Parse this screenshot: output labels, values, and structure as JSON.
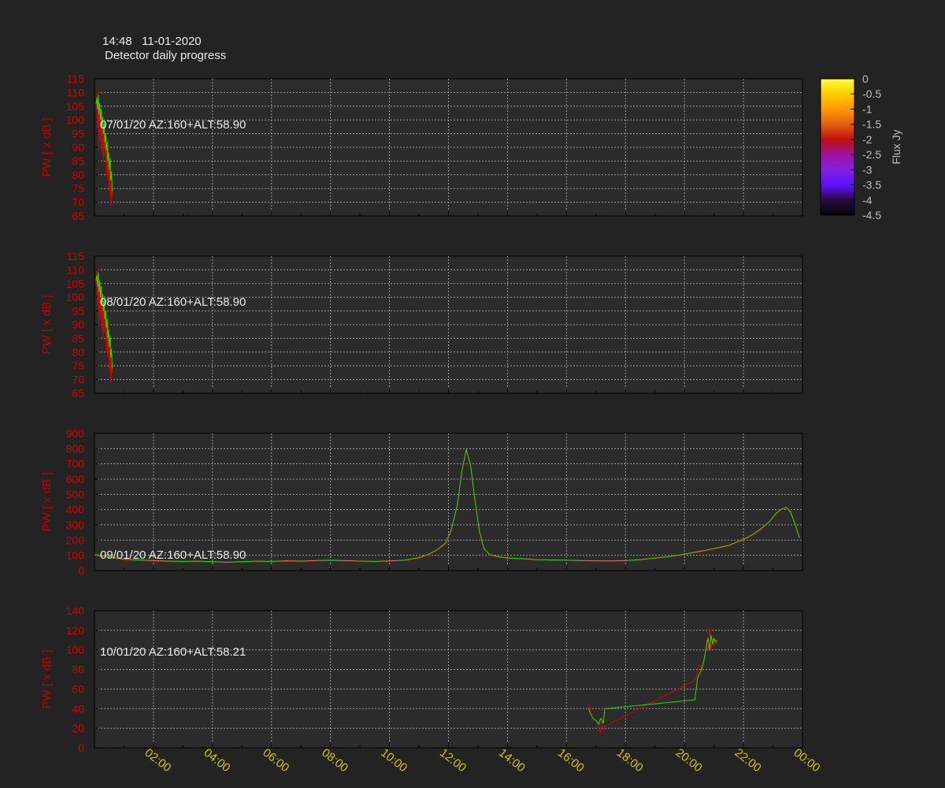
{
  "header": {
    "time_date": "14:48   11-01-2020",
    "title": "Detector daily progress"
  },
  "colors": {
    "background": "#232323",
    "plot_background": "#2b2b2b",
    "series_red": "#e00000",
    "series_green": "#22e000",
    "tick_label_y": "#d40000",
    "tick_label_x": "#d4c400",
    "grid": "#9a9a9a"
  },
  "colorbar": {
    "label": "Flux Jy",
    "ticks": [
      "0",
      "-0.5",
      "-1",
      "-1.5",
      "-2",
      "-2.5",
      "-3",
      "-3.5",
      "-4",
      "-4.5"
    ],
    "range": [
      -4.5,
      0
    ],
    "colormap": [
      "#ffff40",
      "#ffcc00",
      "#ff9900",
      "#e06010",
      "#c01010",
      "#a010a0",
      "#8020e0",
      "#6010ff",
      "#2a0a40",
      "#050505"
    ]
  },
  "chart_data": [
    {
      "type": "line",
      "label": "07/01/20 AZ:160+ALT:58.90",
      "ylabel": "PW [ x dB ]",
      "ylim": [
        65,
        115
      ],
      "yticks": [
        65,
        70,
        75,
        80,
        85,
        90,
        95,
        100,
        105,
        110,
        115
      ],
      "xlim": [
        0,
        24
      ],
      "grid": true,
      "series": [
        {
          "color": "red",
          "x": [
            0.05,
            0.08,
            0.1,
            0.12,
            0.15,
            0.17,
            0.2,
            0.22,
            0.25,
            0.27,
            0.3,
            0.32,
            0.35,
            0.37,
            0.4,
            0.42,
            0.45,
            0.47,
            0.5,
            0.52,
            0.55,
            0.58,
            0.6
          ],
          "y": [
            104,
            110,
            97,
            108,
            89,
            106,
            92,
            103,
            88,
            100,
            85,
            96,
            87,
            94,
            80,
            90,
            78,
            93,
            74,
            84,
            69,
            76,
            72
          ]
        },
        {
          "color": "green",
          "x": [
            0.05,
            0.08,
            0.1,
            0.13,
            0.15,
            0.18,
            0.2,
            0.23,
            0.25,
            0.28,
            0.3,
            0.33,
            0.35,
            0.38,
            0.4,
            0.43,
            0.45,
            0.48,
            0.5,
            0.53,
            0.55,
            0.58,
            0.6
          ],
          "y": [
            106,
            108,
            104,
            109,
            102,
            106,
            100,
            104,
            97,
            101,
            95,
            99,
            92,
            95,
            89,
            92,
            85,
            88,
            82,
            86,
            78,
            81,
            74
          ]
        }
      ]
    },
    {
      "type": "line",
      "label": "08/01/20 AZ:160+ALT:58.90",
      "ylabel": "PW [ x dB ]",
      "ylim": [
        65,
        115
      ],
      "yticks": [
        65,
        70,
        75,
        80,
        85,
        90,
        95,
        100,
        105,
        110,
        115
      ],
      "xlim": [
        0,
        24
      ],
      "grid": true,
      "series": [
        {
          "color": "red",
          "x": [
            0.05,
            0.08,
            0.1,
            0.12,
            0.15,
            0.17,
            0.2,
            0.22,
            0.25,
            0.27,
            0.3,
            0.32,
            0.35,
            0.37,
            0.4,
            0.42,
            0.45,
            0.47,
            0.5,
            0.52,
            0.55,
            0.58,
            0.6
          ],
          "y": [
            104,
            110,
            97,
            108,
            89,
            106,
            92,
            103,
            88,
            100,
            85,
            96,
            87,
            94,
            80,
            90,
            78,
            93,
            74,
            84,
            69,
            76,
            72
          ]
        },
        {
          "color": "green",
          "x": [
            0.05,
            0.08,
            0.1,
            0.13,
            0.15,
            0.18,
            0.2,
            0.23,
            0.25,
            0.28,
            0.3,
            0.33,
            0.35,
            0.38,
            0.4,
            0.43,
            0.45,
            0.48,
            0.5,
            0.53,
            0.55,
            0.58,
            0.6
          ],
          "y": [
            106,
            108,
            104,
            109,
            102,
            106,
            100,
            104,
            97,
            101,
            95,
            99,
            92,
            95,
            89,
            92,
            85,
            88,
            82,
            86,
            78,
            81,
            74
          ]
        }
      ]
    },
    {
      "type": "line",
      "label": "09/01/20 AZ:160+ALT:58.90",
      "ylabel": "PW [ x dB ]",
      "ylim": [
        0,
        900
      ],
      "yticks": [
        0,
        100,
        200,
        300,
        400,
        500,
        600,
        700,
        800,
        900
      ],
      "xlim": [
        0,
        24
      ],
      "grid": true,
      "series": [
        {
          "color": "red",
          "x": [
            0,
            0.5,
            1,
            1.5,
            2,
            2.5,
            3,
            3.5,
            4,
            4.5,
            5,
            5.5,
            6,
            6.5,
            7,
            7.5,
            8,
            8.5,
            9,
            9.5,
            10,
            10.5,
            11,
            11.3,
            11.6,
            11.9,
            12.1,
            12.3,
            12.45,
            12.6,
            12.75,
            12.9,
            13.05,
            13.2,
            13.4,
            13.6,
            13.8,
            14,
            14.5,
            15,
            15.5,
            16,
            16.5,
            17,
            17.5,
            18,
            18.5,
            19,
            19.5,
            20,
            20.5,
            21,
            21.5,
            22,
            22.3,
            22.6,
            22.9,
            23.1,
            23.3,
            23.45,
            23.6,
            23.75,
            23.9
          ],
          "y": [
            100,
            85,
            70,
            65,
            60,
            58,
            55,
            57,
            55,
            52,
            55,
            58,
            56,
            60,
            58,
            62,
            65,
            62,
            60,
            58,
            60,
            65,
            80,
            100,
            130,
            170,
            260,
            420,
            640,
            790,
            680,
            450,
            250,
            140,
            100,
            90,
            85,
            80,
            75,
            70,
            68,
            65,
            63,
            62,
            60,
            62,
            70,
            80,
            90,
            105,
            120,
            140,
            160,
            200,
            230,
            270,
            320,
            370,
            400,
            410,
            380,
            300,
            210
          ]
        },
        {
          "color": "green",
          "x": [
            0,
            0.5,
            1,
            1.5,
            2,
            2.5,
            3,
            3.5,
            4,
            4.5,
            5,
            5.5,
            6,
            6.5,
            7,
            7.5,
            8,
            8.5,
            9,
            9.5,
            10,
            10.5,
            11,
            11.3,
            11.6,
            11.9,
            12.1,
            12.3,
            12.45,
            12.6,
            12.75,
            12.9,
            13.05,
            13.2,
            13.4,
            13.6,
            13.8,
            14,
            14.5,
            15,
            15.5,
            16,
            16.5,
            17,
            17.5,
            18,
            18.5,
            19,
            19.5,
            20,
            20.5,
            21,
            21.5,
            22,
            22.3,
            22.6,
            22.9,
            23.1,
            23.3,
            23.45,
            23.6,
            23.75,
            23.9
          ],
          "y": [
            105,
            90,
            75,
            70,
            65,
            62,
            60,
            62,
            58,
            55,
            58,
            62,
            60,
            64,
            62,
            66,
            68,
            65,
            62,
            60,
            63,
            68,
            85,
            105,
            135,
            180,
            270,
            430,
            650,
            795,
            690,
            460,
            260,
            145,
            105,
            95,
            88,
            82,
            78,
            72,
            70,
            68,
            66,
            64,
            63,
            65,
            72,
            82,
            92,
            108,
            125,
            145,
            165,
            205,
            235,
            275,
            325,
            375,
            405,
            415,
            385,
            305,
            215
          ]
        }
      ]
    },
    {
      "type": "line",
      "label": "10/01/20 AZ:160+ALT:58.21",
      "ylabel": "PW [ x dB ]",
      "ylim": [
        0,
        140
      ],
      "yticks": [
        0,
        20,
        40,
        60,
        80,
        100,
        120,
        140
      ],
      "xlim": [
        0,
        24
      ],
      "xticks": [
        "02:00",
        "04:00",
        "06:00",
        "08:00",
        "10:00",
        "12:00",
        "14:00",
        "16:00",
        "18:00",
        "20:00",
        "22:00",
        "00:00"
      ],
      "grid": true,
      "series": [
        {
          "color": "red",
          "x": [
            16.75,
            16.8,
            16.9,
            17,
            17.05,
            17.1,
            17.15,
            17.2,
            17.25,
            17.3,
            20.3,
            20.4,
            20.5,
            20.6,
            20.7,
            20.75,
            20.8,
            20.85,
            20.9,
            20.95,
            21,
            21.05,
            21.1
          ],
          "y": [
            45,
            38,
            30,
            28,
            24,
            20,
            15,
            30,
            18,
            22,
            68,
            72,
            85,
            80,
            95,
            110,
            98,
            122,
            100,
            112,
            104,
            110,
            106
          ]
        },
        {
          "color": "green",
          "x": [
            16.75,
            16.8,
            16.9,
            17,
            17.05,
            17.1,
            17.15,
            17.2,
            17.25,
            17.3,
            17.35,
            20.35,
            20.45,
            20.55,
            20.65,
            20.7,
            20.75,
            20.8,
            20.85,
            20.9,
            20.95,
            21,
            21.05,
            21.1
          ],
          "y": [
            40,
            36,
            30,
            28,
            26,
            24,
            30,
            28,
            25,
            40,
            40,
            49,
            72,
            78,
            88,
            96,
            105,
            112,
            100,
            115,
            106,
            112,
            108,
            110
          ]
        }
      ]
    }
  ]
}
